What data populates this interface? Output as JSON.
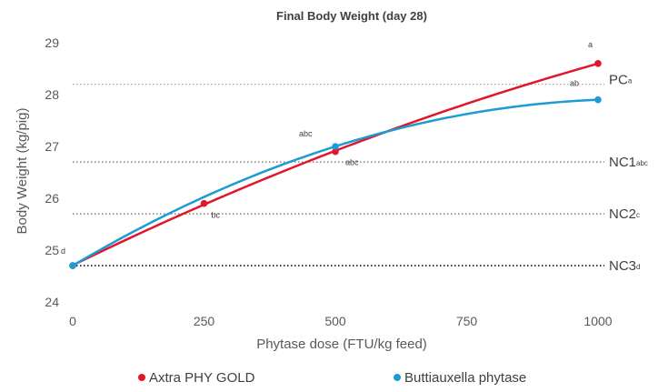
{
  "chart_data": {
    "type": "line",
    "title": "Final Body Weight (day 28)",
    "xlabel": "Phytase dose (FTU/kg feed)",
    "ylabel": "Body Weight (kg/pig)",
    "xlim": [
      0,
      1000
    ],
    "ylim": [
      24,
      29
    ],
    "xticks": [
      "0",
      "250",
      "500",
      "750",
      "1000"
    ],
    "yticks": [
      "24",
      "25",
      "26",
      "27",
      "28",
      "29"
    ],
    "grid": false,
    "legend_position": "bottom",
    "series": [
      {
        "name": "Axtra PHY GOLD",
        "color": "#e0162b",
        "x": [
          0,
          250,
          500,
          1000
        ],
        "y": [
          24.7,
          25.9,
          26.9,
          28.6
        ],
        "labels": [
          "",
          "bc",
          "abc",
          "a"
        ]
      },
      {
        "name": "Buttiauxella phytase",
        "color": "#1d9bd6",
        "x": [
          0,
          500,
          1000
        ],
        "y": [
          24.7,
          27.0,
          27.9
        ],
        "labels": [
          "d",
          "abc",
          "ab"
        ]
      }
    ],
    "reference_lines": [
      {
        "name": "PC",
        "superscript": "a",
        "value": 28.2,
        "style": "dotted-light"
      },
      {
        "name": "NC1",
        "superscript": "abc",
        "value": 26.7,
        "style": "dotted"
      },
      {
        "name": "NC2",
        "superscript": "c",
        "value": 25.7,
        "style": "dotted"
      },
      {
        "name": "NC3",
        "superscript": "d",
        "value": 24.7,
        "style": "dotted-dark"
      }
    ]
  }
}
